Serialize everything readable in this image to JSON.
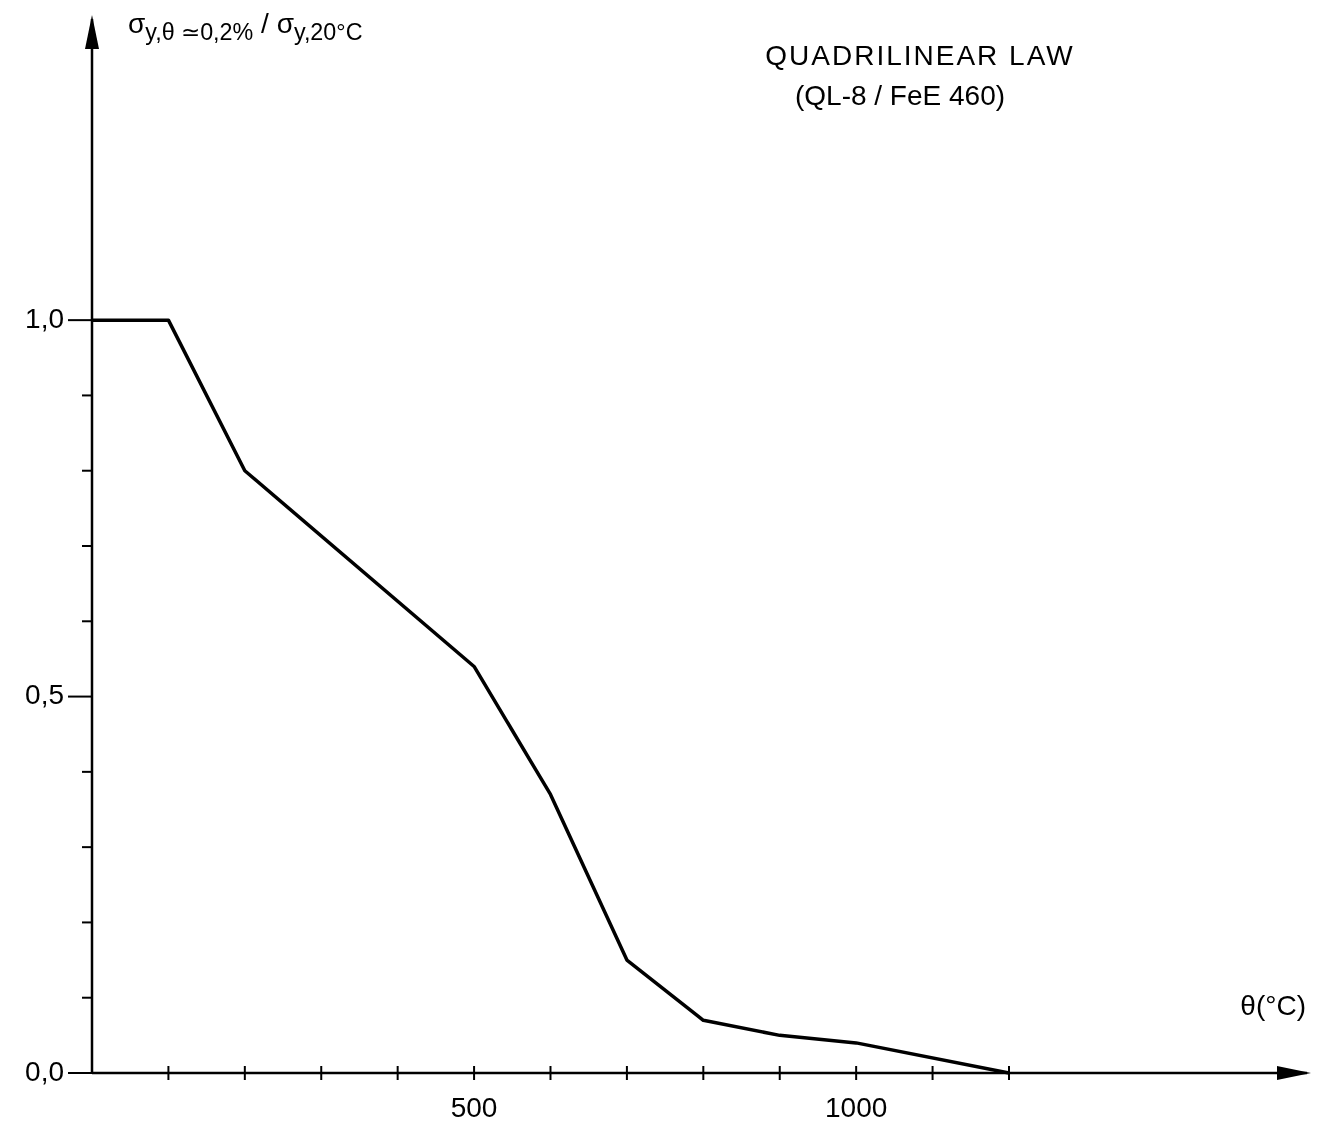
{
  "chart_data": {
    "type": "line",
    "title": "QUADRILINEAR LAW",
    "subtitle": "(QL-8 / FeE 460)",
    "xlabel": "θ(°C)",
    "ylabel": "σ$_{y,θ ≃0,2%}$ / σ$_{y,20°C}$",
    "x": [
      0,
      100,
      200,
      500,
      600,
      700,
      800,
      900,
      1000,
      1200
    ],
    "values": [
      1.0,
      1.0,
      0.8,
      0.54,
      0.37,
      0.15,
      0.07,
      0.05,
      0.04,
      0.0
    ],
    "color": "#000000",
    "marker": "none",
    "line_style": "solid",
    "xlim": [
      0,
      1590
    ],
    "xticks": [
      {
        "value": 100,
        "label": null
      },
      {
        "value": 200,
        "label": null
      },
      {
        "value": 300,
        "label": null
      },
      {
        "value": 400,
        "label": null
      },
      500,
      {
        "value": 600,
        "label": null
      },
      {
        "value": 700,
        "label": null
      },
      {
        "value": 800,
        "label": null
      },
      {
        "value": 900,
        "label": null
      },
      1000,
      {
        "value": 1100,
        "label": null
      },
      {
        "value": 1200,
        "label": null
      }
    ],
    "ylim": [
      0,
      1.4
    ],
    "yticks": [
      {
        "value": 0,
        "label": "0,0"
      },
      {
        "value": 0.1,
        "label": null
      },
      {
        "value": 0.2,
        "label": null
      },
      {
        "value": 0.3,
        "label": null
      },
      {
        "value": 0.4,
        "label": null
      },
      {
        "value": 0.5,
        "label": "0,5"
      },
      {
        "value": 0.6,
        "label": null
      },
      {
        "value": 0.7,
        "label": null
      },
      {
        "value": 0.8,
        "label": null
      },
      {
        "value": 0.9,
        "label": null
      },
      {
        "value": 1.0,
        "label": "1,0"
      }
    ]
  }
}
